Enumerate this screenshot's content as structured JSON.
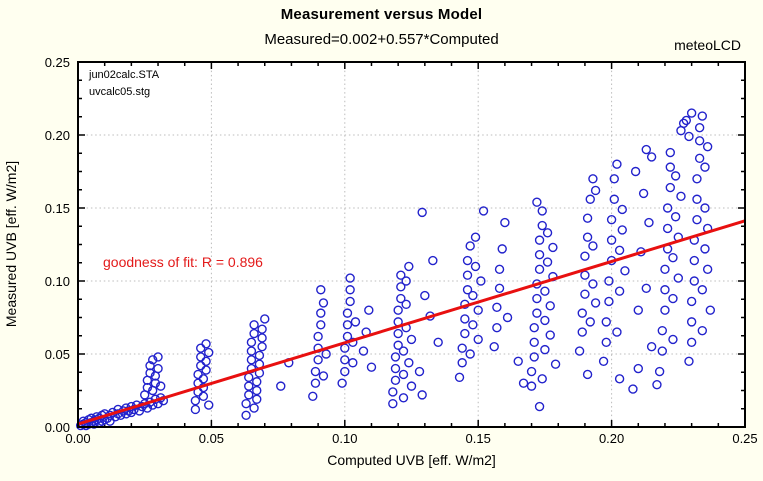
{
  "window": {
    "background": "#fffff0",
    "plot_background": "#ffffff"
  },
  "header": {
    "title": "Measurement versus Model",
    "subtitle": "Measured=0.002+0.557*Computed",
    "watermark": "meteoLCD"
  },
  "annotations": {
    "fit_label": "goodness of fit: R = 0.896",
    "file_line1": "jun02calc.STA",
    "file_line2": "uvcalc05.stg"
  },
  "colors": {
    "marker": "#2222cc",
    "regression_line": "#e81010",
    "fit_text": "#e31a1a",
    "grid": "#bcbcbc",
    "frame": "#000000"
  },
  "chart_data": {
    "type": "scatter",
    "title": "Measurement versus Model",
    "subtitle": "Measured=0.002+0.557*Computed",
    "xlabel": "Computed UVB [eff. W/m2]",
    "ylabel": "Measured  UVB [eff. W/m2]",
    "xlim": [
      0,
      0.25
    ],
    "ylim": [
      0,
      0.25
    ],
    "x_ticks": [
      "0.00",
      "0.05",
      "0.10",
      "0.15",
      "0.20",
      "0.25"
    ],
    "y_ticks": [
      "0.00",
      "0.05",
      "0.10",
      "0.15",
      "0.20",
      "0.25"
    ],
    "x_minor_step": 0.01,
    "y_minor_step": 0.0125,
    "grid": "dotted-major",
    "legend": "none",
    "marker": {
      "shape": "open-circle",
      "color": "#2222cc",
      "radius_px": 4
    },
    "regression": {
      "intercept": 0.002,
      "slope": 0.557,
      "r": 0.896,
      "color": "#e81010"
    },
    "points": [
      [
        0.001,
        0.001
      ],
      [
        0.002,
        0.002
      ],
      [
        0.002,
        0.004
      ],
      [
        0.003,
        0.001
      ],
      [
        0.003,
        0.003
      ],
      [
        0.004,
        0.002
      ],
      [
        0.004,
        0.005
      ],
      [
        0.005,
        0.003
      ],
      [
        0.005,
        0.006
      ],
      [
        0.006,
        0.002
      ],
      [
        0.006,
        0.004
      ],
      [
        0.007,
        0.005
      ],
      [
        0.007,
        0.007
      ],
      [
        0.008,
        0.003
      ],
      [
        0.008,
        0.006
      ],
      [
        0.009,
        0.004
      ],
      [
        0.009,
        0.008
      ],
      [
        0.01,
        0.005
      ],
      [
        0.01,
        0.009
      ],
      [
        0.011,
        0.006
      ],
      [
        0.012,
        0.004
      ],
      [
        0.012,
        0.008
      ],
      [
        0.013,
        0.01
      ],
      [
        0.014,
        0.007
      ],
      [
        0.015,
        0.009
      ],
      [
        0.015,
        0.012
      ],
      [
        0.016,
        0.008
      ],
      [
        0.017,
        0.011
      ],
      [
        0.018,
        0.009
      ],
      [
        0.018,
        0.013
      ],
      [
        0.019,
        0.011
      ],
      [
        0.02,
        0.01
      ],
      [
        0.02,
        0.014
      ],
      [
        0.021,
        0.012
      ],
      [
        0.022,
        0.015
      ],
      [
        0.023,
        0.011
      ],
      [
        0.024,
        0.014
      ],
      [
        0.025,
        0.016
      ],
      [
        0.026,
        0.013
      ],
      [
        0.027,
        0.017
      ],
      [
        0.028,
        0.015
      ],
      [
        0.029,
        0.019
      ],
      [
        0.03,
        0.016
      ],
      [
        0.031,
        0.02
      ],
      [
        0.032,
        0.018
      ],
      [
        0.025,
        0.022
      ],
      [
        0.026,
        0.027
      ],
      [
        0.026,
        0.032
      ],
      [
        0.027,
        0.037
      ],
      [
        0.027,
        0.042
      ],
      [
        0.028,
        0.046
      ],
      [
        0.028,
        0.025
      ],
      [
        0.029,
        0.03
      ],
      [
        0.029,
        0.035
      ],
      [
        0.03,
        0.04
      ],
      [
        0.03,
        0.048
      ],
      [
        0.031,
        0.028
      ],
      [
        0.044,
        0.012
      ],
      [
        0.044,
        0.018
      ],
      [
        0.045,
        0.024
      ],
      [
        0.045,
        0.03
      ],
      [
        0.045,
        0.036
      ],
      [
        0.046,
        0.042
      ],
      [
        0.046,
        0.048
      ],
      [
        0.046,
        0.054
      ],
      [
        0.047,
        0.021
      ],
      [
        0.047,
        0.027
      ],
      [
        0.047,
        0.033
      ],
      [
        0.048,
        0.039
      ],
      [
        0.048,
        0.045
      ],
      [
        0.048,
        0.057
      ],
      [
        0.049,
        0.015
      ],
      [
        0.049,
        0.051
      ],
      [
        0.063,
        0.008
      ],
      [
        0.063,
        0.016
      ],
      [
        0.064,
        0.022
      ],
      [
        0.064,
        0.028
      ],
      [
        0.064,
        0.034
      ],
      [
        0.065,
        0.04
      ],
      [
        0.065,
        0.046
      ],
      [
        0.065,
        0.052
      ],
      [
        0.065,
        0.058
      ],
      [
        0.066,
        0.064
      ],
      [
        0.066,
        0.07
      ],
      [
        0.066,
        0.013
      ],
      [
        0.067,
        0.019
      ],
      [
        0.067,
        0.025
      ],
      [
        0.067,
        0.031
      ],
      [
        0.068,
        0.037
      ],
      [
        0.068,
        0.043
      ],
      [
        0.068,
        0.049
      ],
      [
        0.069,
        0.055
      ],
      [
        0.069,
        0.061
      ],
      [
        0.069,
        0.067
      ],
      [
        0.07,
        0.074
      ],
      [
        0.076,
        0.028
      ],
      [
        0.079,
        0.044
      ],
      [
        0.088,
        0.021
      ],
      [
        0.089,
        0.03
      ],
      [
        0.089,
        0.038
      ],
      [
        0.09,
        0.046
      ],
      [
        0.09,
        0.054
      ],
      [
        0.09,
        0.062
      ],
      [
        0.091,
        0.07
      ],
      [
        0.091,
        0.078
      ],
      [
        0.092,
        0.035
      ],
      [
        0.092,
        0.085
      ],
      [
        0.093,
        0.05
      ],
      [
        0.091,
        0.094
      ],
      [
        0.099,
        0.03
      ],
      [
        0.1,
        0.038
      ],
      [
        0.1,
        0.046
      ],
      [
        0.1,
        0.054
      ],
      [
        0.101,
        0.062
      ],
      [
        0.101,
        0.07
      ],
      [
        0.101,
        0.078
      ],
      [
        0.102,
        0.086
      ],
      [
        0.102,
        0.094
      ],
      [
        0.102,
        0.102
      ],
      [
        0.103,
        0.044
      ],
      [
        0.103,
        0.058
      ],
      [
        0.104,
        0.072
      ],
      [
        0.107,
        0.052
      ],
      [
        0.108,
        0.065
      ],
      [
        0.109,
        0.08
      ],
      [
        0.11,
        0.041
      ],
      [
        0.118,
        0.016
      ],
      [
        0.118,
        0.024
      ],
      [
        0.119,
        0.032
      ],
      [
        0.119,
        0.04
      ],
      [
        0.119,
        0.048
      ],
      [
        0.12,
        0.056
      ],
      [
        0.12,
        0.064
      ],
      [
        0.12,
        0.072
      ],
      [
        0.12,
        0.08
      ],
      [
        0.121,
        0.088
      ],
      [
        0.121,
        0.096
      ],
      [
        0.121,
        0.104
      ],
      [
        0.122,
        0.02
      ],
      [
        0.122,
        0.036
      ],
      [
        0.122,
        0.052
      ],
      [
        0.123,
        0.068
      ],
      [
        0.123,
        0.084
      ],
      [
        0.123,
        0.1
      ],
      [
        0.124,
        0.11
      ],
      [
        0.124,
        0.044
      ],
      [
        0.125,
        0.06
      ],
      [
        0.125,
        0.028
      ],
      [
        0.128,
        0.038
      ],
      [
        0.129,
        0.022
      ],
      [
        0.13,
        0.09
      ],
      [
        0.132,
        0.076
      ],
      [
        0.133,
        0.114
      ],
      [
        0.135,
        0.058
      ],
      [
        0.129,
        0.147
      ],
      [
        0.143,
        0.034
      ],
      [
        0.144,
        0.044
      ],
      [
        0.144,
        0.054
      ],
      [
        0.145,
        0.064
      ],
      [
        0.145,
        0.074
      ],
      [
        0.145,
        0.084
      ],
      [
        0.146,
        0.094
      ],
      [
        0.146,
        0.104
      ],
      [
        0.146,
        0.114
      ],
      [
        0.147,
        0.124
      ],
      [
        0.147,
        0.05
      ],
      [
        0.148,
        0.07
      ],
      [
        0.148,
        0.09
      ],
      [
        0.149,
        0.11
      ],
      [
        0.149,
        0.13
      ],
      [
        0.15,
        0.06
      ],
      [
        0.15,
        0.08
      ],
      [
        0.151,
        0.1
      ],
      [
        0.152,
        0.148
      ],
      [
        0.156,
        0.055
      ],
      [
        0.157,
        0.068
      ],
      [
        0.157,
        0.082
      ],
      [
        0.158,
        0.095
      ],
      [
        0.158,
        0.108
      ],
      [
        0.159,
        0.122
      ],
      [
        0.16,
        0.14
      ],
      [
        0.161,
        0.075
      ],
      [
        0.165,
        0.045
      ],
      [
        0.167,
        0.03
      ],
      [
        0.173,
        0.014
      ],
      [
        0.17,
        0.028
      ],
      [
        0.17,
        0.038
      ],
      [
        0.171,
        0.048
      ],
      [
        0.171,
        0.058
      ],
      [
        0.171,
        0.068
      ],
      [
        0.172,
        0.078
      ],
      [
        0.172,
        0.088
      ],
      [
        0.172,
        0.098
      ],
      [
        0.173,
        0.108
      ],
      [
        0.173,
        0.118
      ],
      [
        0.173,
        0.128
      ],
      [
        0.174,
        0.138
      ],
      [
        0.174,
        0.148
      ],
      [
        0.174,
        0.033
      ],
      [
        0.175,
        0.053
      ],
      [
        0.175,
        0.073
      ],
      [
        0.175,
        0.093
      ],
      [
        0.176,
        0.113
      ],
      [
        0.176,
        0.133
      ],
      [
        0.177,
        0.063
      ],
      [
        0.177,
        0.083
      ],
      [
        0.178,
        0.103
      ],
      [
        0.178,
        0.123
      ],
      [
        0.179,
        0.043
      ],
      [
        0.172,
        0.154
      ],
      [
        0.188,
        0.052
      ],
      [
        0.189,
        0.065
      ],
      [
        0.189,
        0.078
      ],
      [
        0.19,
        0.091
      ],
      [
        0.19,
        0.104
      ],
      [
        0.19,
        0.117
      ],
      [
        0.191,
        0.13
      ],
      [
        0.191,
        0.143
      ],
      [
        0.192,
        0.156
      ],
      [
        0.192,
        0.072
      ],
      [
        0.193,
        0.098
      ],
      [
        0.193,
        0.124
      ],
      [
        0.194,
        0.162
      ],
      [
        0.194,
        0.085
      ],
      [
        0.193,
        0.17
      ],
      [
        0.191,
        0.036
      ],
      [
        0.197,
        0.045
      ],
      [
        0.198,
        0.058
      ],
      [
        0.198,
        0.072
      ],
      [
        0.199,
        0.086
      ],
      [
        0.199,
        0.1
      ],
      [
        0.2,
        0.114
      ],
      [
        0.2,
        0.128
      ],
      [
        0.2,
        0.142
      ],
      [
        0.201,
        0.156
      ],
      [
        0.201,
        0.17
      ],
      [
        0.202,
        0.18
      ],
      [
        0.202,
        0.065
      ],
      [
        0.203,
        0.093
      ],
      [
        0.203,
        0.121
      ],
      [
        0.204,
        0.149
      ],
      [
        0.204,
        0.135
      ],
      [
        0.205,
        0.107
      ],
      [
        0.209,
        0.175
      ],
      [
        0.21,
        0.08
      ],
      [
        0.211,
        0.12
      ],
      [
        0.212,
        0.16
      ],
      [
        0.213,
        0.095
      ],
      [
        0.213,
        0.19
      ],
      [
        0.214,
        0.14
      ],
      [
        0.215,
        0.185
      ],
      [
        0.215,
        0.055
      ],
      [
        0.203,
        0.033
      ],
      [
        0.21,
        0.04
      ],
      [
        0.217,
        0.029
      ],
      [
        0.208,
        0.026
      ],
      [
        0.218,
        0.038
      ],
      [
        0.219,
        0.052
      ],
      [
        0.219,
        0.066
      ],
      [
        0.22,
        0.08
      ],
      [
        0.22,
        0.094
      ],
      [
        0.22,
        0.108
      ],
      [
        0.221,
        0.122
      ],
      [
        0.221,
        0.136
      ],
      [
        0.221,
        0.15
      ],
      [
        0.222,
        0.164
      ],
      [
        0.222,
        0.178
      ],
      [
        0.222,
        0.188
      ],
      [
        0.223,
        0.06
      ],
      [
        0.223,
        0.088
      ],
      [
        0.223,
        0.116
      ],
      [
        0.224,
        0.144
      ],
      [
        0.224,
        0.172
      ],
      [
        0.225,
        0.102
      ],
      [
        0.225,
        0.13
      ],
      [
        0.226,
        0.158
      ],
      [
        0.226,
        0.203
      ],
      [
        0.227,
        0.208
      ],
      [
        0.229,
        0.045
      ],
      [
        0.23,
        0.058
      ],
      [
        0.23,
        0.072
      ],
      [
        0.23,
        0.086
      ],
      [
        0.231,
        0.1
      ],
      [
        0.231,
        0.114
      ],
      [
        0.231,
        0.128
      ],
      [
        0.232,
        0.142
      ],
      [
        0.232,
        0.156
      ],
      [
        0.232,
        0.17
      ],
      [
        0.233,
        0.184
      ],
      [
        0.233,
        0.196
      ],
      [
        0.233,
        0.205
      ],
      [
        0.234,
        0.213
      ],
      [
        0.234,
        0.066
      ],
      [
        0.234,
        0.094
      ],
      [
        0.235,
        0.122
      ],
      [
        0.235,
        0.15
      ],
      [
        0.235,
        0.178
      ],
      [
        0.236,
        0.108
      ],
      [
        0.236,
        0.136
      ],
      [
        0.236,
        0.192
      ],
      [
        0.237,
        0.08
      ],
      [
        0.228,
        0.21
      ],
      [
        0.229,
        0.199
      ],
      [
        0.23,
        0.215
      ]
    ]
  }
}
